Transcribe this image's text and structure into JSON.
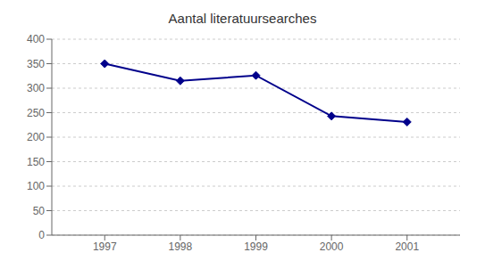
{
  "chart_data": {
    "type": "line",
    "title": "Aantal literatuursearches",
    "x": [
      1997,
      1998,
      1999,
      2000,
      2001
    ],
    "values": [
      350,
      315,
      326,
      243,
      231
    ],
    "xlim": [
      1996.3,
      2001.7
    ],
    "xticks": [
      1997,
      1998,
      1999,
      2000,
      2001
    ],
    "ylim": [
      0,
      400
    ],
    "yticks": [
      0,
      50,
      100,
      150,
      200,
      250,
      300,
      350,
      400
    ],
    "color": "#00008B",
    "marker": "diamond",
    "grid": true
  }
}
